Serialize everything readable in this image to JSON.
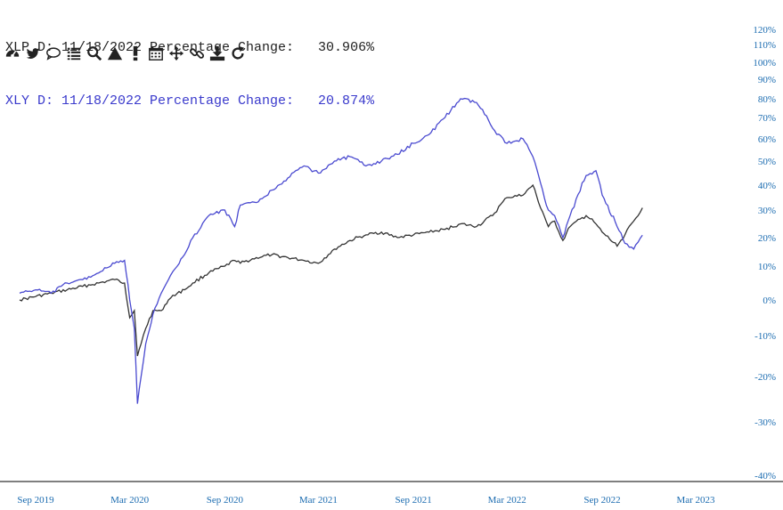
{
  "legend": [
    {
      "text": "XLP D: 11/18/2022 Percentage Change:   30.906%",
      "color": "#222222"
    },
    {
      "text": "XLY D: 11/18/2022 Percentage Change:   20.874%",
      "color": "#3a3acc"
    }
  ],
  "toolbar": [
    {
      "name": "dashboard-icon"
    },
    {
      "name": "twitter-icon"
    },
    {
      "name": "comment-icon"
    },
    {
      "name": "list-icon"
    },
    {
      "name": "search-icon"
    },
    {
      "name": "triangle-icon"
    },
    {
      "name": "exclamation-icon"
    },
    {
      "name": "calendar-icon"
    },
    {
      "name": "move-icon"
    },
    {
      "name": "link-icon"
    },
    {
      "name": "download-icon"
    },
    {
      "name": "refresh-icon"
    }
  ],
  "chart_data": {
    "type": "line",
    "xlabel": "",
    "ylabel": "",
    "x_ticks": [
      "Sep 2019",
      "Mar 2020",
      "Sep 2020",
      "Mar 2021",
      "Sep 2021",
      "Mar 2022",
      "Sep 2022",
      "Mar 2023"
    ],
    "y_ticks": [
      "120%",
      "110%",
      "100%",
      "90%",
      "80%",
      "70%",
      "60%",
      "50%",
      "40%",
      "30%",
      "20%",
      "10%",
      "0%",
      "-10%",
      "-20%",
      "-30%",
      "-40%"
    ],
    "ylim": [
      -40,
      120
    ],
    "y_scale": "nonlinear",
    "series": [
      {
        "name": "XLP",
        "color": "#333333",
        "x": [
          "2019-08-01",
          "2019-09-01",
          "2019-10-01",
          "2019-11-01",
          "2019-12-01",
          "2020-01-01",
          "2020-02-01",
          "2020-02-20",
          "2020-03-01",
          "2020-03-10",
          "2020-03-16",
          "2020-03-23",
          "2020-04-01",
          "2020-04-15",
          "2020-05-01",
          "2020-05-15",
          "2020-06-01",
          "2020-06-15",
          "2020-07-01",
          "2020-08-01",
          "2020-09-01",
          "2020-09-20",
          "2020-10-01",
          "2020-11-01",
          "2020-12-01",
          "2021-01-01",
          "2021-02-01",
          "2021-03-01",
          "2021-04-01",
          "2021-05-01",
          "2021-06-01",
          "2021-07-01",
          "2021-08-01",
          "2021-09-01",
          "2021-10-01",
          "2021-11-01",
          "2021-12-01",
          "2022-01-01",
          "2022-02-01",
          "2022-03-01",
          "2022-04-01",
          "2022-04-20",
          "2022-05-01",
          "2022-05-20",
          "2022-06-01",
          "2022-06-17",
          "2022-07-01",
          "2022-08-01",
          "2022-08-20",
          "2022-09-01",
          "2022-09-30",
          "2022-10-15",
          "2022-11-01",
          "2022-11-18"
        ],
        "values": [
          0,
          1,
          2,
          3,
          4,
          5,
          6,
          5,
          -5,
          -3,
          -15,
          -12,
          -8,
          -3,
          -3,
          0,
          2,
          3,
          5,
          8,
          10,
          12,
          11,
          13,
          14,
          13,
          12,
          11,
          16,
          19,
          21,
          22,
          20,
          21,
          22,
          23,
          25,
          24,
          28,
          35,
          36,
          40,
          33,
          24,
          26,
          19,
          24,
          28,
          25,
          22,
          17,
          21,
          26,
          30.906
        ]
      },
      {
        "name": "XLY",
        "color": "#4a4ad0",
        "x": [
          "2019-08-01",
          "2019-09-01",
          "2019-10-01",
          "2019-11-01",
          "2019-12-01",
          "2020-01-01",
          "2020-02-01",
          "2020-02-20",
          "2020-03-01",
          "2020-03-10",
          "2020-03-16",
          "2020-03-23",
          "2020-04-01",
          "2020-04-15",
          "2020-05-01",
          "2020-05-15",
          "2020-06-01",
          "2020-06-15",
          "2020-07-01",
          "2020-08-01",
          "2020-09-01",
          "2020-09-20",
          "2020-10-01",
          "2020-11-01",
          "2020-12-01",
          "2021-01-01",
          "2021-02-01",
          "2021-03-01",
          "2021-04-01",
          "2021-05-01",
          "2021-06-01",
          "2021-07-01",
          "2021-08-01",
          "2021-09-01",
          "2021-10-01",
          "2021-11-01",
          "2021-12-01",
          "2022-01-01",
          "2022-02-01",
          "2022-03-01",
          "2022-04-01",
          "2022-04-20",
          "2022-05-01",
          "2022-05-20",
          "2022-06-01",
          "2022-06-17",
          "2022-07-01",
          "2022-08-01",
          "2022-08-20",
          "2022-09-01",
          "2022-09-30",
          "2022-10-15",
          "2022-11-01",
          "2022-11-18"
        ],
        "values": [
          2,
          3,
          2,
          5,
          6,
          8,
          11,
          12,
          0,
          -8,
          -26,
          -20,
          -12,
          -4,
          2,
          6,
          10,
          14,
          20,
          28,
          30,
          24,
          32,
          33,
          38,
          43,
          48,
          45,
          50,
          52,
          48,
          50,
          53,
          58,
          62,
          70,
          80,
          78,
          65,
          58,
          60,
          52,
          44,
          30,
          28,
          20,
          28,
          44,
          46,
          36,
          24,
          18,
          16,
          20.874
        ]
      }
    ],
    "legend_position": "top-left",
    "grid": false
  }
}
